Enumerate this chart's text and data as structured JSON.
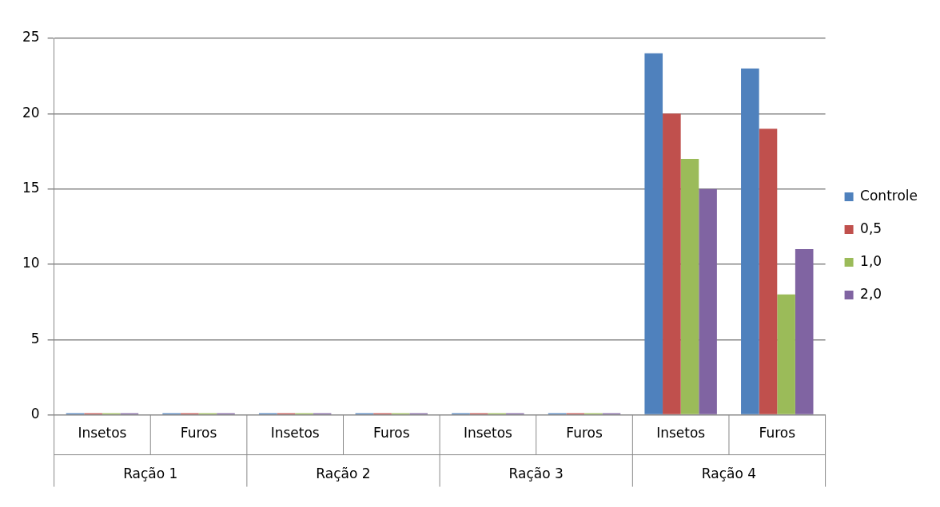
{
  "chart_data": {
    "type": "bar",
    "categories": [
      "Insetos",
      "Furos",
      "Insetos",
      "Furos",
      "Insetos",
      "Furos",
      "Insetos",
      "Furos"
    ],
    "series": [
      {
        "name": "Controle",
        "color": "#4f81bd",
        "values": [
          0,
          0,
          0,
          0,
          0,
          0,
          24,
          23
        ]
      },
      {
        "name": "0,5",
        "color": "#c0504d",
        "values": [
          0,
          0,
          0,
          0,
          0,
          0,
          20,
          19
        ]
      },
      {
        "name": "1,0",
        "color": "#9bbb59",
        "values": [
          0,
          0,
          0,
          0,
          0,
          0,
          17,
          8
        ]
      },
      {
        "name": "2,0",
        "color": "#8064a2",
        "values": [
          0,
          0,
          0,
          0,
          0,
          0,
          15,
          11
        ]
      }
    ],
    "annotations": [
      "Ração 1",
      "Ração 2",
      "Ração 3",
      "Ração 4"
    ],
    "ylim": [
      0,
      25
    ],
    "yticks": [
      0,
      5,
      10,
      15,
      20,
      25
    ],
    "grid": "y",
    "legend": "right"
  }
}
